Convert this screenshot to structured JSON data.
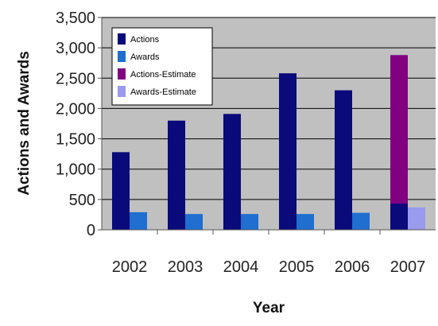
{
  "chart_data": {
    "type": "bar",
    "xlabel": "Year",
    "ylabel": "Actions and Awards",
    "categories": [
      "2002",
      "2003",
      "2004",
      "2005",
      "2006",
      "2007"
    ],
    "ylim": [
      0,
      3500
    ],
    "yticks": [
      "0",
      "500",
      "1,000",
      "1,500",
      "2,000",
      "2,500",
      "3,000",
      "3,500"
    ],
    "ytick_values": [
      0,
      500,
      1000,
      1500,
      2000,
      2500,
      3000,
      3500
    ],
    "grid": true,
    "legend_position": "top-left",
    "series": [
      {
        "name": "Actions",
        "color": "#0a0a7a",
        "values": [
          1280,
          1800,
          1910,
          2580,
          2300,
          430
        ]
      },
      {
        "name": "Awards",
        "color": "#1f6ed0",
        "values": [
          290,
          260,
          260,
          260,
          280,
          null
        ]
      },
      {
        "name": "Actions-Estimate",
        "color": "#800080",
        "values": [
          null,
          null,
          null,
          null,
          null,
          2880
        ]
      },
      {
        "name": "Awards-Estimate",
        "color": "#9a9aee",
        "values": [
          null,
          null,
          null,
          null,
          null,
          370
        ]
      }
    ]
  }
}
